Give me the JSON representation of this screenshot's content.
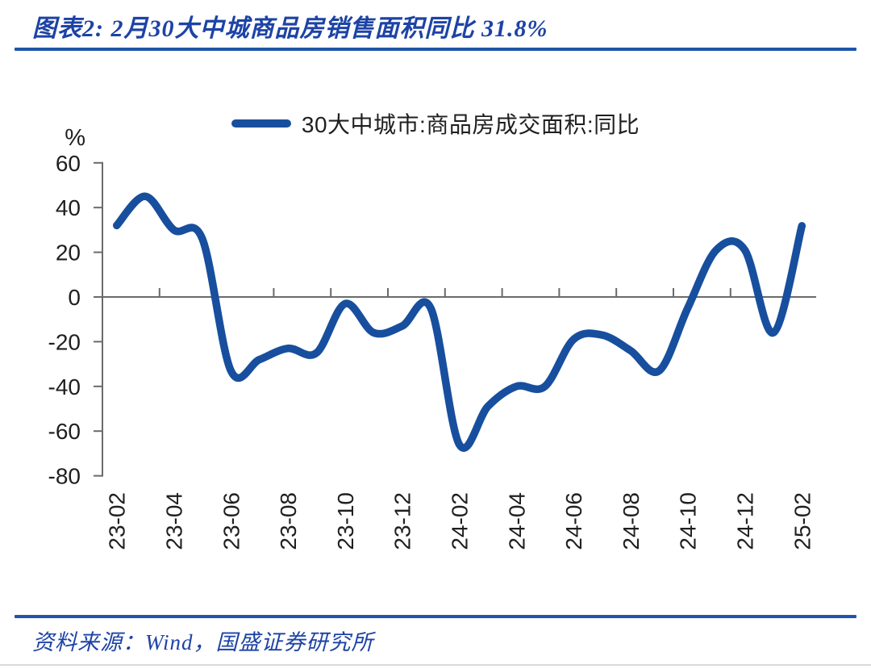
{
  "page": {
    "title": "图表2: 2月30大中城商品房销售面积同比 31.8%",
    "source": "资料来源：Wind，国盛证券研究所"
  },
  "colors": {
    "rule_blue": "#1f55a8",
    "title_blue": "#1d43a5",
    "line_blue": "#174f9e",
    "axis_gray": "#6a6a6a",
    "label_dark": "#1f1f1f",
    "page_edge_gray": "#d9d9d9"
  },
  "chart_data": {
    "type": "line",
    "smooth": true,
    "grid": false,
    "title": "",
    "xlabel": "",
    "ylabel": "%",
    "y_unit_label": "%",
    "ylim": [
      -80,
      60
    ],
    "y_ticks": [
      60,
      40,
      20,
      0,
      -20,
      -40,
      -60,
      -80
    ],
    "legend_position": "top-center",
    "x_tick_labels": [
      "23-02",
      "23-04",
      "23-06",
      "23-08",
      "23-10",
      "23-12",
      "24-02",
      "24-04",
      "24-06",
      "24-08",
      "24-10",
      "24-12",
      "25-02"
    ],
    "x": [
      "23-02",
      "23-03",
      "23-04",
      "23-05",
      "23-06",
      "23-07",
      "23-08",
      "23-09",
      "23-10",
      "23-11",
      "23-12",
      "24-01",
      "24-02",
      "24-03",
      "24-04",
      "24-05",
      "24-06",
      "24-07",
      "24-08",
      "24-09",
      "24-10",
      "24-11",
      "24-12",
      "25-01",
      "25-02"
    ],
    "series": [
      {
        "name": "30大中城市:商品房成交面积:同比",
        "color": "#174f9e",
        "values": [
          32,
          45,
          30,
          26,
          -33,
          -28,
          -23,
          -25,
          -3,
          -16,
          -13,
          -5,
          -66,
          -49,
          -40,
          -40,
          -19,
          -17,
          -24,
          -33,
          -5,
          21,
          21,
          -16,
          31.8
        ]
      }
    ]
  }
}
